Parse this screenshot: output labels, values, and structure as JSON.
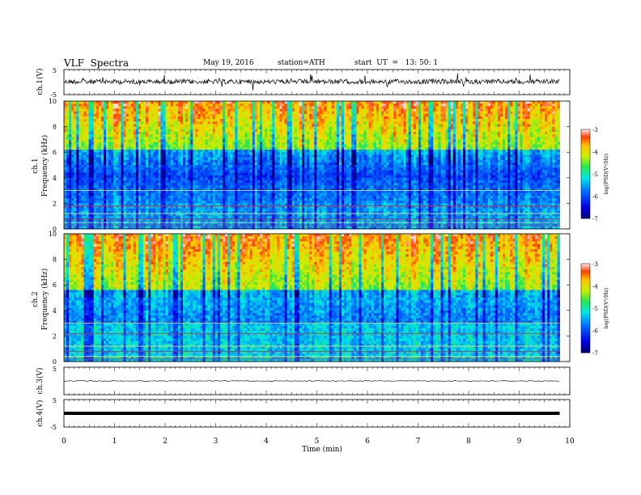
{
  "header": {
    "title": "VLF  Spectra",
    "date": "May 19, 2016",
    "station": "station=ATH",
    "start": "start  UT  =   13: 50: 1"
  },
  "chart_data": [
    {
      "type": "line",
      "panel": "ch1-waveform",
      "ylabel": "ch.1(V)",
      "ylim": [
        -5,
        5
      ],
      "yticks": [
        "5",
        "-5"
      ],
      "xlim": [
        0,
        10
      ],
      "x_end": 9.8
    },
    {
      "type": "heatmap",
      "panel": "ch1-spectrogram",
      "ylabel_line1": "ch.1",
      "ylabel_line2": "Frequency  (kHz)",
      "ylim": [
        0,
        10
      ],
      "yticks": [
        "0",
        "2",
        "4",
        "6",
        "8",
        "10"
      ],
      "xlim": [
        0,
        10
      ],
      "x_end": 9.8,
      "colorbar": {
        "label": "log(PSD(V²/Hz)",
        "range": [
          -7,
          -3
        ],
        "ticks": [
          "-3",
          "-4",
          "-5",
          "-6",
          "-7"
        ]
      }
    },
    {
      "type": "heatmap",
      "panel": "ch2-spectrogram",
      "ylabel_line1": "ch.2",
      "ylabel_line2": "Frequency  (kHz)",
      "ylim": [
        0,
        10
      ],
      "yticks": [
        "0",
        "2",
        "4",
        "6",
        "8",
        "10"
      ],
      "xlim": [
        0,
        10
      ],
      "x_end": 9.8,
      "colorbar": {
        "label": "log(PSD(V²/Hz)",
        "range": [
          -7,
          -3
        ],
        "ticks": [
          "-3",
          "-4",
          "-5",
          "-6",
          "-7"
        ]
      }
    },
    {
      "type": "line",
      "panel": "ch3-waveform",
      "ylabel": "ch.3(V)",
      "ylim": [
        -5,
        5
      ],
      "yticks": [
        "5"
      ],
      "xlim": [
        0,
        10
      ],
      "x_end": 9.8
    },
    {
      "type": "line",
      "panel": "ch4-waveform",
      "ylabel": "ch.4(V)",
      "ylim": [
        -5,
        5
      ],
      "yticks": [
        "5",
        "-5"
      ],
      "xlim": [
        0,
        10
      ],
      "x_end": 9.8
    }
  ],
  "xaxis": {
    "label": "Time  (min)",
    "ticks": [
      "0",
      "1",
      "2",
      "3",
      "4",
      "5",
      "6",
      "7",
      "8",
      "9",
      "10"
    ]
  }
}
